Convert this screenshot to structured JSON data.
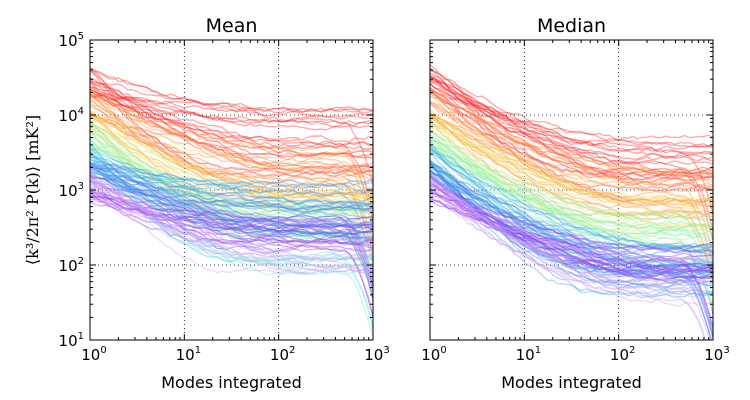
{
  "chart_data": [
    {
      "type": "line",
      "title": "Mean",
      "xlabel": "Modes integrated",
      "ylabel": "⟨k³/2π² P(k)⟩ [mK²]",
      "xscale": "log",
      "yscale": "log",
      "xlim": [
        1,
        1000
      ],
      "ylim": [
        10,
        100000
      ],
      "grid": true,
      "x_ticks": [
        {
          "base": "10",
          "exp": "0"
        },
        {
          "base": "10",
          "exp": "1"
        },
        {
          "base": "10",
          "exp": "2"
        },
        {
          "base": "10",
          "exp": "3"
        }
      ],
      "y_ticks": [
        {
          "base": "10",
          "exp": "1"
        },
        {
          "base": "10",
          "exp": "2"
        },
        {
          "base": "10",
          "exp": "3"
        },
        {
          "base": "10",
          "exp": "4"
        },
        {
          "base": "10",
          "exp": "5"
        }
      ],
      "series_groups": [
        {
          "color": "#ff2a2a",
          "count": 22,
          "start": [
            18000,
            45000
          ],
          "end": [
            1500,
            12000
          ],
          "plateau_frac": [
            0.45,
            0.85
          ],
          "noise": 0.06
        },
        {
          "color": "#ff8a3a",
          "count": 20,
          "start": [
            9000,
            22000
          ],
          "end": [
            700,
            3500
          ],
          "plateau_frac": [
            0.45,
            0.85
          ],
          "noise": 0.06
        },
        {
          "color": "#f3d45a",
          "count": 14,
          "start": [
            6000,
            12000
          ],
          "end": [
            500,
            1800
          ],
          "plateau_frac": [
            0.45,
            0.85
          ],
          "noise": 0.06
        },
        {
          "color": "#98f0a0",
          "count": 20,
          "start": [
            3500,
            8000
          ],
          "end": [
            200,
            700
          ],
          "plateau_frac": [
            0.45,
            0.85
          ],
          "noise": 0.06
        },
        {
          "color": "#6ee6d8",
          "count": 14,
          "start": [
            2000,
            4500
          ],
          "end": [
            80,
            350
          ],
          "plateau_frac": [
            0.45,
            0.85
          ],
          "noise": 0.06
        },
        {
          "color": "#3aa0f0",
          "count": 22,
          "start": [
            1500,
            4000
          ],
          "end": [
            250,
            1300
          ],
          "plateau_frac": [
            0.45,
            0.85
          ],
          "noise": 0.06
        },
        {
          "color": "#5a6cf0",
          "count": 12,
          "start": [
            1200,
            2500
          ],
          "end": [
            250,
            600
          ],
          "plateau_frac": [
            0.45,
            0.85
          ],
          "noise": 0.06
        },
        {
          "color": "#9a3cf6",
          "count": 18,
          "start": [
            700,
            1600
          ],
          "end": [
            150,
            400
          ],
          "plateau_frac": [
            0.45,
            0.85
          ],
          "noise": 0.06
        },
        {
          "color": "#c9a2f6",
          "count": 12,
          "start": [
            900,
            1800
          ],
          "end": [
            80,
            200
          ],
          "plateau_frac": [
            0.45,
            0.85
          ],
          "noise": 0.06
        }
      ]
    },
    {
      "type": "line",
      "title": "Median",
      "xlabel": "Modes integrated",
      "xscale": "log",
      "yscale": "log",
      "xlim": [
        1,
        1000
      ],
      "ylim": [
        10,
        100000
      ],
      "grid": true,
      "x_ticks": [
        {
          "base": "10",
          "exp": "0"
        },
        {
          "base": "10",
          "exp": "1"
        },
        {
          "base": "10",
          "exp": "2"
        },
        {
          "base": "10",
          "exp": "3"
        }
      ],
      "series_groups": [
        {
          "color": "#ff2a2a",
          "count": 22,
          "start": [
            18000,
            45000
          ],
          "end": [
            700,
            5000
          ],
          "plateau_frac": [
            0.55,
            0.9
          ],
          "noise": 0.06
        },
        {
          "color": "#ff8a3a",
          "count": 20,
          "start": [
            9000,
            22000
          ],
          "end": [
            400,
            1800
          ],
          "plateau_frac": [
            0.55,
            0.9
          ],
          "noise": 0.06
        },
        {
          "color": "#f3d45a",
          "count": 14,
          "start": [
            6000,
            12000
          ],
          "end": [
            300,
            1000
          ],
          "plateau_frac": [
            0.55,
            0.9
          ],
          "noise": 0.06
        },
        {
          "color": "#98f0a0",
          "count": 20,
          "start": [
            3500,
            8000
          ],
          "end": [
            150,
            500
          ],
          "plateau_frac": [
            0.55,
            0.9
          ],
          "noise": 0.06
        },
        {
          "color": "#6ee6d8",
          "count": 14,
          "start": [
            2000,
            4500
          ],
          "end": [
            60,
            250
          ],
          "plateau_frac": [
            0.55,
            0.9
          ],
          "noise": 0.06
        },
        {
          "color": "#3aa0f0",
          "count": 22,
          "start": [
            1500,
            4000
          ],
          "end": [
            40,
            200
          ],
          "plateau_frac": [
            0.55,
            0.9
          ],
          "noise": 0.06
        },
        {
          "color": "#5a6cf0",
          "count": 12,
          "start": [
            1200,
            2500
          ],
          "end": [
            50,
            200
          ],
          "plateau_frac": [
            0.55,
            0.9
          ],
          "noise": 0.06
        },
        {
          "color": "#9a3cf6",
          "count": 18,
          "start": [
            700,
            1600
          ],
          "end": [
            60,
            180
          ],
          "plateau_frac": [
            0.55,
            0.9
          ],
          "noise": 0.06
        },
        {
          "color": "#c9a2f6",
          "count": 12,
          "start": [
            900,
            1800
          ],
          "end": [
            30,
            120
          ],
          "plateau_frac": [
            0.55,
            0.9
          ],
          "noise": 0.06
        }
      ]
    }
  ]
}
